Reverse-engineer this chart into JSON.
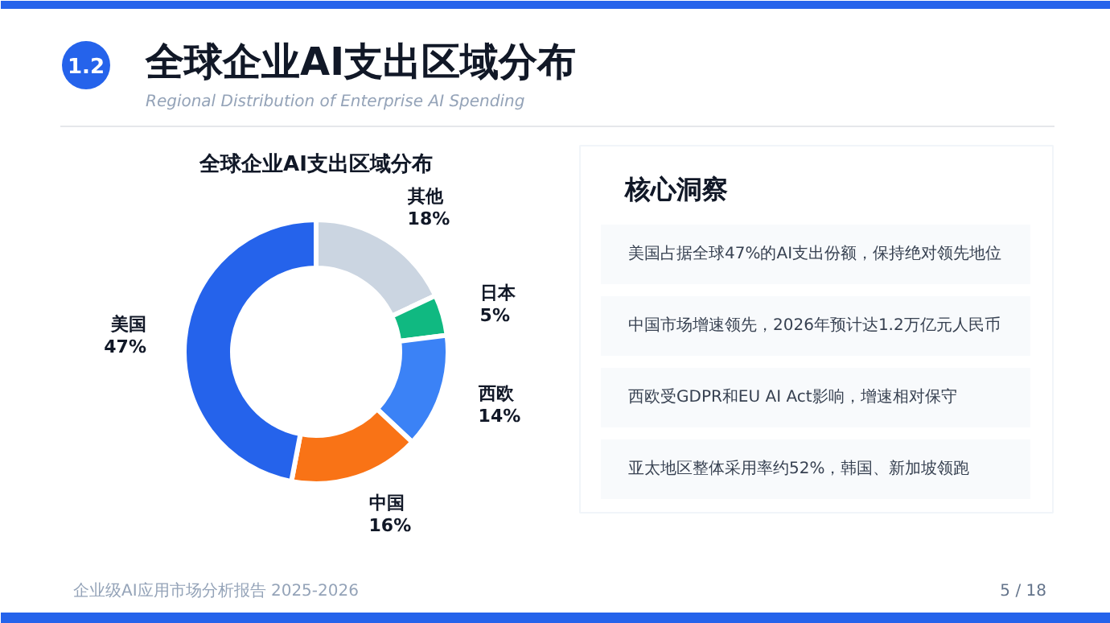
{
  "chart_data": [
    {
      "type": "donut",
      "title": "全球企业AI支出区域分布",
      "categories": [
        "其他",
        "日本",
        "西欧",
        "中国",
        "美国"
      ],
      "values": [
        18,
        5,
        14,
        16,
        47
      ],
      "value_labels": [
        "18%",
        "5%",
        "14%",
        "16%",
        "47%"
      ],
      "colors": [
        "#cbd5e1",
        "#10b981",
        "#3b82f6",
        "#f97316",
        "#2563eb"
      ],
      "data_labels": true,
      "annotations": [
        "1.2",
        "全球企业AI支出区域分布",
        "Regional Distribution of Enterprise AI Spending",
        "企业级AI应用市场分析报告 2025-2026",
        "5 / 18"
      ]
    },
    {
      "type": "other",
      "title": "核心洞察",
      "annotations": [
        "美国占据全球47%的AI支出份额，保持绝对领先地位",
        "中国市场增速领先，2026年预计达1.2万亿元人民币",
        "西欧受GDPR和EU AI Act影响，增速相对保守",
        "亚太地区整体采用率约52%，韩国、新加坡领跑"
      ]
    }
  ]
}
